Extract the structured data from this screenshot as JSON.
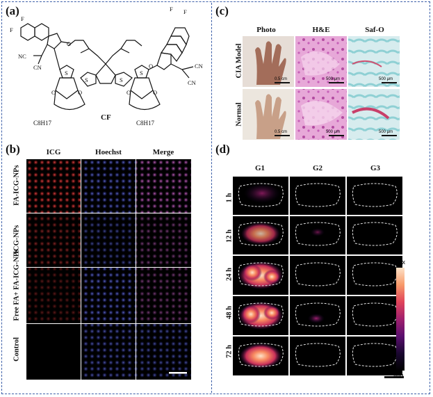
{
  "panels": {
    "a": "(a)",
    "b": "(b)",
    "c": "(c)",
    "d": "(d)"
  },
  "a": {
    "compound_label": "CF",
    "substituents": {
      "nc1": "NC",
      "cn1": "CN",
      "cn2": "CN",
      "cn3": "CN",
      "o1": "O",
      "o2": "O",
      "s": "S",
      "f": "F",
      "alkyl1": "C8H17",
      "alkyl2": "C8H17"
    }
  },
  "b": {
    "cols": [
      "ICG",
      "Hoechst",
      "Merge"
    ],
    "rows": [
      "FA-ICG-NPs",
      "ICG-NPs",
      "Free FA+ FA-ICG-NPs",
      "Control"
    ]
  },
  "c": {
    "cols": [
      "Photo",
      "H&E",
      "Saf-O"
    ],
    "rows": [
      "CIA Model",
      "Normal"
    ],
    "scales": [
      "0.5 cm",
      "500 μm",
      "500 μm",
      "0.5 cm",
      "500 μm",
      "500 μm"
    ]
  },
  "d": {
    "cols": [
      "G1",
      "G2",
      "G3"
    ],
    "rows": [
      "1 h",
      "12 h",
      "24 h",
      "48 h",
      "72 h"
    ],
    "colorbar": {
      "max": "Max",
      "min": "Min"
    }
  },
  "colors": {
    "frame": "#3b5ea8",
    "icg": "#e03030",
    "hoechst": "#4a5cff",
    "hne": "#d680c8",
    "safo": "#7ec8cc"
  }
}
